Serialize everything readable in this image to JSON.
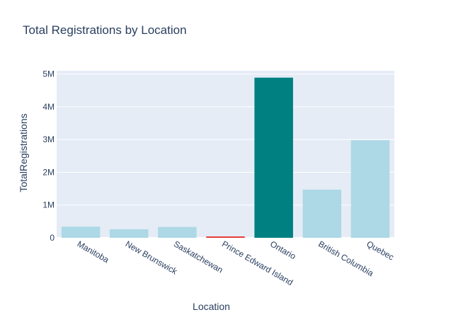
{
  "chart_data": {
    "type": "bar",
    "title": "Total Registrations by Location",
    "xlabel": "Location",
    "ylabel": "TotalRegistrations",
    "categories": [
      "Manitoba",
      "New Brunswick",
      "Saskatchewan",
      "Prince Edward Island",
      "Ontario",
      "British Columbia",
      "Quebec"
    ],
    "values": [
      340000,
      260000,
      330000,
      40000,
      4890000,
      1470000,
      2980000
    ],
    "bar_colors": [
      "#add8e6",
      "#add8e6",
      "#add8e6",
      "#e6302b",
      "#008080",
      "#add8e6",
      "#add8e6"
    ],
    "ylim": [
      0,
      5100000
    ],
    "yticks": [
      0,
      1000000,
      2000000,
      3000000,
      4000000,
      5000000
    ],
    "ytick_labels": [
      "0",
      "1M",
      "2M",
      "3M",
      "4M",
      "5M"
    ],
    "grid": true,
    "plot_background": "#e5ecf6",
    "text_color": "#2a3f5f"
  }
}
